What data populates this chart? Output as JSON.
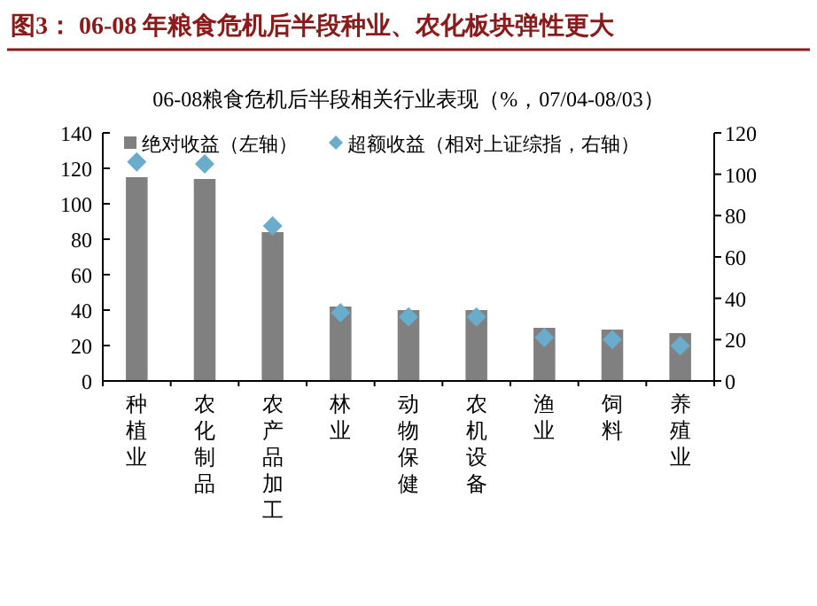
{
  "chart_data": {
    "type": "bar",
    "title": "图3：  06-08 年粮食危机后半段种业、农化板块弹性更大",
    "subtitle": "06-08粮食危机后半段相关行业表现（%，07/04-08/03）",
    "categories": [
      "种植业",
      "农化制品",
      "农产品加工",
      "林业",
      "动物保健",
      "农机设备",
      "渔业",
      "饲料",
      "养殖业"
    ],
    "series": [
      {
        "name": "绝对收益（左轴）",
        "color": "#808080",
        "values": [
          115,
          114,
          84,
          42,
          40,
          40,
          30,
          29,
          27
        ]
      },
      {
        "name": "超额收益（相对上证综指，右轴）",
        "type": "scatter",
        "axis": "y2",
        "marker": "diamond",
        "color": "#6aaccb",
        "values": [
          106,
          105,
          75,
          33,
          31,
          31,
          21,
          20,
          17
        ]
      }
    ],
    "ylim": [
      0,
      140
    ],
    "yticks": [
      0,
      20,
      40,
      60,
      80,
      100,
      120,
      140
    ],
    "y2lim": [
      0,
      120
    ],
    "y2ticks": [
      0,
      20,
      40,
      60,
      80,
      100,
      120
    ],
    "legend": "top",
    "grid": false
  }
}
